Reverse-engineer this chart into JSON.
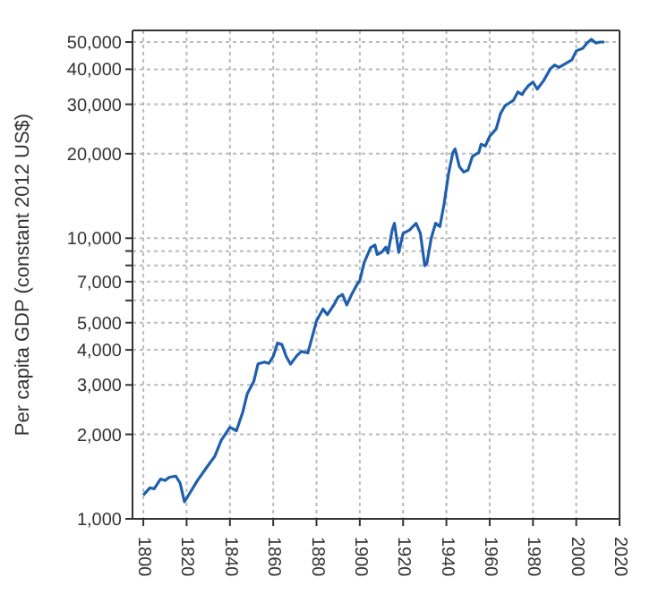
{
  "chart_data": {
    "type": "line",
    "ylabel": "Per capita GDP (constant 2012 US$)",
    "log": "y",
    "grid": true,
    "legend": false,
    "marker": "none",
    "line_style": "solid",
    "xlim": [
      1795,
      2020
    ],
    "xticks": [
      1800,
      1820,
      1840,
      1860,
      1880,
      1900,
      1920,
      1940,
      1960,
      1980,
      2000,
      2020
    ],
    "ylim": [
      1000,
      55000
    ],
    "yticks": [
      {
        "value": 1000,
        "label": "1,000"
      },
      {
        "value": 2000,
        "label": "2,000"
      },
      {
        "value": 3000,
        "label": "3,000"
      },
      {
        "value": 4000,
        "label": "4,000"
      },
      {
        "value": 5000,
        "label": "5,000"
      },
      {
        "value": 6000,
        "label": null
      },
      {
        "value": 7000,
        "label": "7,000"
      },
      {
        "value": 8000,
        "label": null
      },
      {
        "value": 9000,
        "label": null
      },
      {
        "value": 10000,
        "label": "10,000"
      },
      {
        "value": 20000,
        "label": "20,000"
      },
      {
        "value": 30000,
        "label": "30,000"
      },
      {
        "value": 40000,
        "label": "40,000"
      },
      {
        "value": 50000,
        "label": "50,000"
      }
    ],
    "x": [
      1800,
      1803,
      1805,
      1808,
      1810,
      1812,
      1815,
      1817,
      1819,
      1825,
      1830,
      1833,
      1836,
      1840,
      1843,
      1846,
      1848,
      1851,
      1853,
      1856,
      1858,
      1860,
      1862,
      1864,
      1866,
      1868,
      1871,
      1873,
      1876,
      1878,
      1880,
      1883,
      1885,
      1888,
      1890,
      1892,
      1894,
      1896,
      1899,
      1900,
      1902,
      1905,
      1907,
      1908,
      1910,
      1912,
      1913,
      1915,
      1916,
      1918,
      1920,
      1923,
      1926,
      1928,
      1930,
      1931,
      1933,
      1935,
      1937,
      1939,
      1941,
      1943,
      1944,
      1946,
      1948,
      1950,
      1952,
      1955,
      1956,
      1958,
      1960,
      1963,
      1965,
      1967,
      1969,
      1971,
      1973,
      1975,
      1976,
      1978,
      1980,
      1982,
      1985,
      1988,
      1990,
      1992,
      1995,
      1998,
      2000,
      2003,
      2005,
      2007,
      2009,
      2011,
      2013
    ],
    "series": [
      {
        "color": "#1f5fae",
        "values": [
          1216,
          1290,
          1280,
          1387,
          1370,
          1407,
          1420,
          1341,
          1150,
          1370,
          1553,
          1670,
          1906,
          2120,
          2060,
          2410,
          2790,
          3085,
          3567,
          3620,
          3580,
          3790,
          4230,
          4180,
          3790,
          3560,
          3820,
          3950,
          3900,
          4450,
          5070,
          5590,
          5340,
          5780,
          6170,
          6300,
          5780,
          6250,
          6900,
          7060,
          8180,
          9250,
          9450,
          8750,
          8900,
          9300,
          8850,
          10720,
          11300,
          8900,
          10400,
          10700,
          11300,
          10400,
          7980,
          8150,
          10000,
          11300,
          11000,
          13340,
          17000,
          20200,
          20800,
          18000,
          17200,
          17500,
          19550,
          20200,
          21600,
          21300,
          23070,
          24500,
          27800,
          29600,
          30300,
          31000,
          33200,
          32500,
          33500,
          35000,
          36000,
          34000,
          36500,
          40100,
          41400,
          40600,
          41900,
          43200,
          46500,
          47500,
          49600,
          51100,
          49600,
          50000,
          50000
        ]
      }
    ]
  }
}
